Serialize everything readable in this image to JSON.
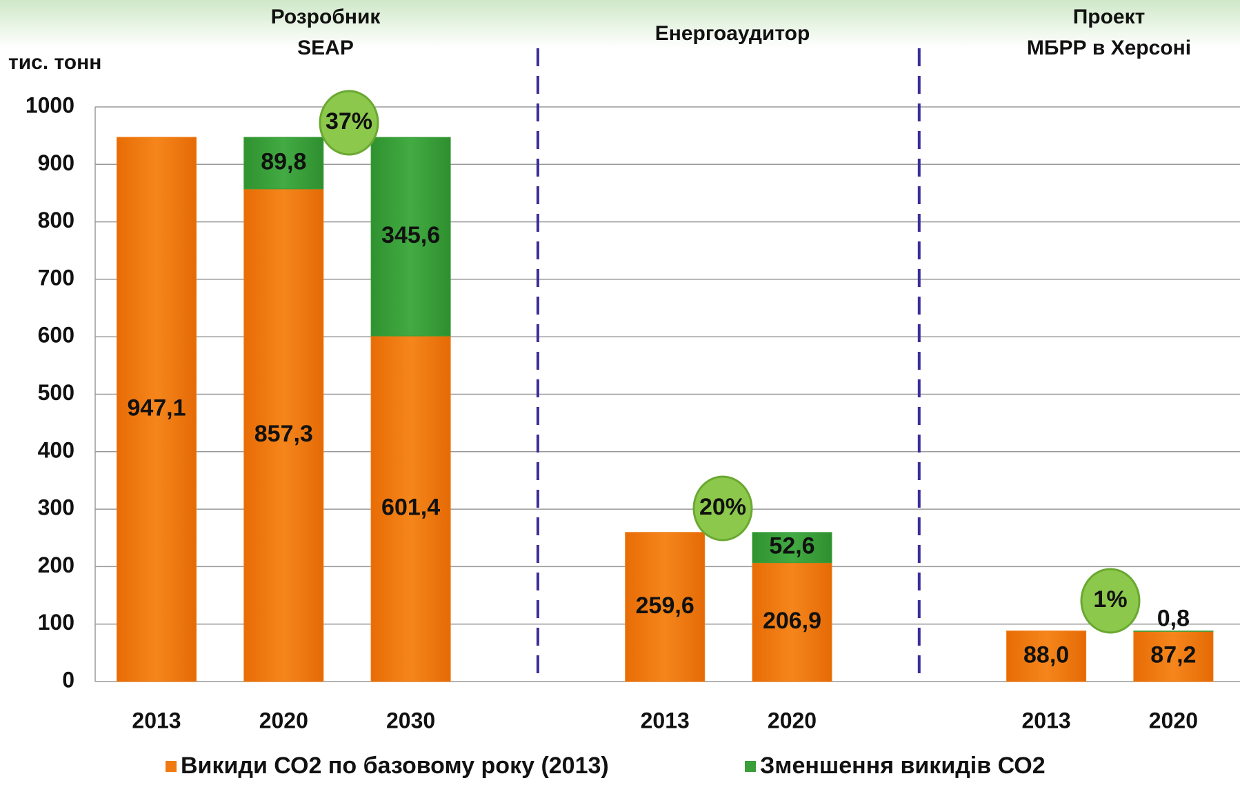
{
  "chart_data": {
    "type": "stacked_bar",
    "y_label": "тис. тонн",
    "group_labels": [
      [
        "Розробник",
        "SEAP"
      ],
      [
        "Енергоаудитор"
      ],
      [
        "Проект",
        "МБРР в Херсоні"
      ]
    ],
    "annotations": [
      "37%",
      "20%",
      "1%"
    ],
    "categories": [
      "2013",
      "2020",
      "2030",
      null,
      "2013",
      "2020",
      null,
      "2013",
      "2020"
    ],
    "series": [
      {
        "name": "Викиди СО2 по базовому року (2013)",
        "color": "#f07a12",
        "values": [
          947.1,
          857.3,
          601.4,
          null,
          259.6,
          206.9,
          null,
          88.0,
          87.2
        ],
        "value_labels": [
          "947,1",
          "857,3",
          "601,4",
          null,
          "259,6",
          "206,9",
          null,
          "88,0",
          "87,2"
        ]
      },
      {
        "name": "Зменшення викидів СО2",
        "color": "#3a9e3a",
        "values": [
          null,
          89.8,
          345.6,
          null,
          null,
          52.6,
          null,
          null,
          0.8
        ],
        "value_labels": [
          null,
          "89,8",
          "345,6",
          null,
          null,
          "52,6",
          null,
          null,
          "0,8"
        ]
      }
    ],
    "ylim": [
      0,
      1000
    ],
    "yticks": [
      0,
      100,
      200,
      300,
      400,
      500,
      600,
      700,
      800,
      900,
      1000
    ],
    "grid": true
  }
}
